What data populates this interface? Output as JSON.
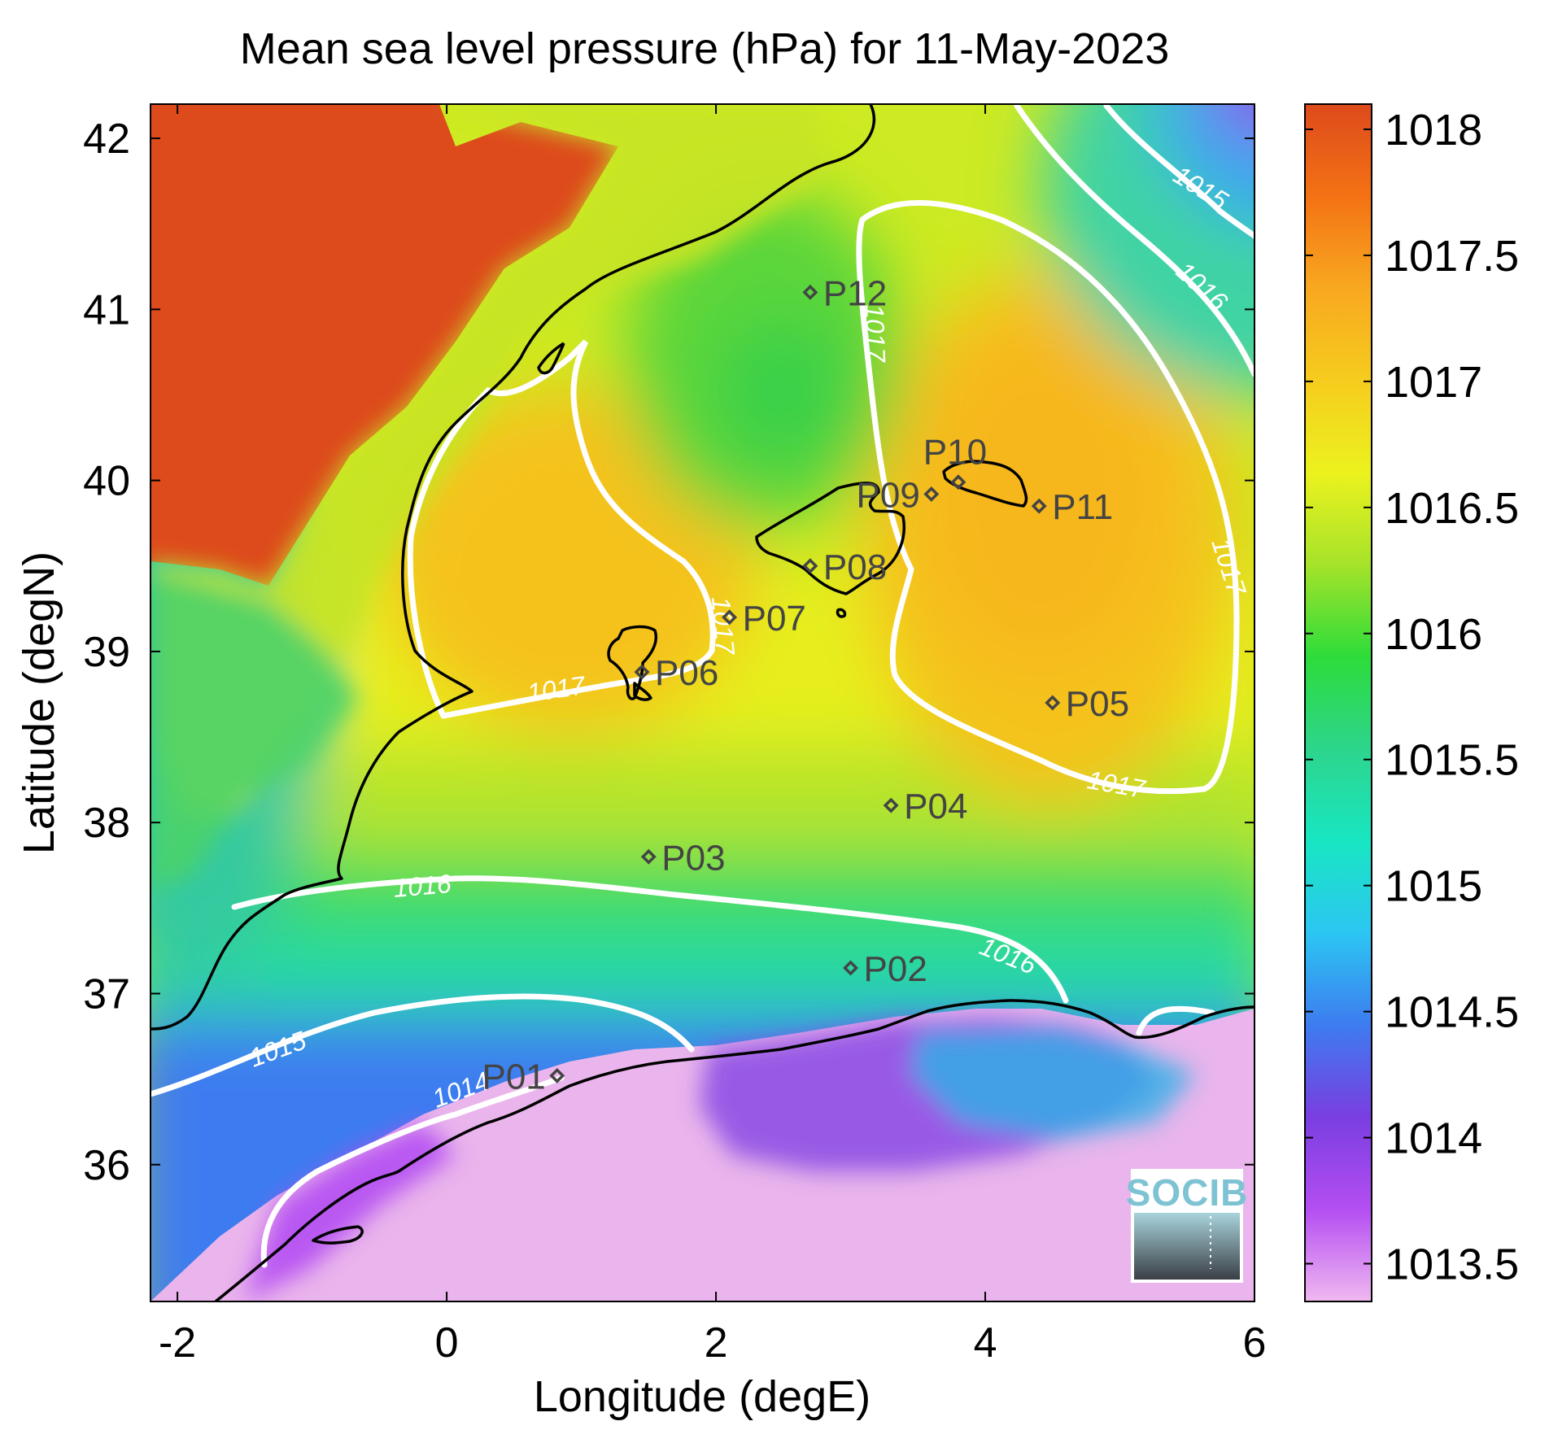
{
  "figure": {
    "title": "Mean sea level pressure (hPa) for 11-May-2023",
    "xlabel": "Longitude (degE)",
    "ylabel": "Latitude (degN)"
  },
  "map_extent": {
    "lon": [
      -2.2,
      6.0
    ],
    "lat": [
      35.2,
      42.2
    ]
  },
  "x_ticks": [
    {
      "value": -2,
      "label": "-2"
    },
    {
      "value": 0,
      "label": "0"
    },
    {
      "value": 2,
      "label": "2"
    },
    {
      "value": 4,
      "label": "4"
    },
    {
      "value": 6,
      "label": "6"
    }
  ],
  "y_ticks": [
    {
      "value": 42,
      "label": "42"
    },
    {
      "value": 41,
      "label": "41"
    },
    {
      "value": 40,
      "label": "40"
    },
    {
      "value": 39,
      "label": "39"
    },
    {
      "value": 38,
      "label": "38"
    },
    {
      "value": 37,
      "label": "37"
    },
    {
      "value": 36,
      "label": "36"
    }
  ],
  "colorbar": {
    "range": [
      1013.35,
      1018.1
    ],
    "ticks": [
      {
        "value": 1018,
        "label": "1018"
      },
      {
        "value": 1017.5,
        "label": "1017.5"
      },
      {
        "value": 1017,
        "label": "1017"
      },
      {
        "value": 1016.5,
        "label": "1016.5"
      },
      {
        "value": 1016,
        "label": "1016"
      },
      {
        "value": 1015.5,
        "label": "1015.5"
      },
      {
        "value": 1015,
        "label": "1015"
      },
      {
        "value": 1014.5,
        "label": "1014.5"
      },
      {
        "value": 1014,
        "label": "1014"
      },
      {
        "value": 1013.5,
        "label": "1013.5"
      }
    ],
    "colors": [
      "#f0b8f0",
      "#b44ef2",
      "#7a3ee0",
      "#3d7cf0",
      "#2cc6f2",
      "#18e6c2",
      "#2dd58c",
      "#2ddc3a",
      "#a6e32a",
      "#ecf21e",
      "#f6cc1e",
      "#f8a820",
      "#f47214",
      "#dd4a1c"
    ]
  },
  "stations": [
    {
      "id": "P01",
      "lon": 0.82,
      "lat": 36.52,
      "label_side": "left"
    },
    {
      "id": "P02",
      "lon": 3.0,
      "lat": 37.15,
      "label_side": "right"
    },
    {
      "id": "P03",
      "lon": 1.5,
      "lat": 37.8,
      "label_side": "right"
    },
    {
      "id": "P04",
      "lon": 3.3,
      "lat": 38.1,
      "label_side": "right"
    },
    {
      "id": "P05",
      "lon": 4.5,
      "lat": 38.7,
      "label_side": "right"
    },
    {
      "id": "P06",
      "lon": 1.45,
      "lat": 38.88,
      "label_side": "right"
    },
    {
      "id": "P07",
      "lon": 2.1,
      "lat": 39.2,
      "label_side": "right"
    },
    {
      "id": "P08",
      "lon": 2.7,
      "lat": 39.5,
      "label_side": "right"
    },
    {
      "id": "P09",
      "lon": 3.6,
      "lat": 39.92,
      "label_side": "left"
    },
    {
      "id": "P10",
      "lon": 3.8,
      "lat": 39.99,
      "label_side": "above"
    },
    {
      "id": "P11",
      "lon": 4.4,
      "lat": 39.85,
      "label_side": "right"
    },
    {
      "id": "P12",
      "lon": 2.7,
      "lat": 41.1,
      "label_side": "right"
    }
  ],
  "contours": [
    {
      "level": 1014,
      "label": "1014"
    },
    {
      "level": 1015,
      "label": "1015"
    },
    {
      "level": 1016,
      "label": "1016"
    },
    {
      "level": 1017,
      "label": "1017"
    }
  ],
  "logo": {
    "text": "SOCIB"
  }
}
